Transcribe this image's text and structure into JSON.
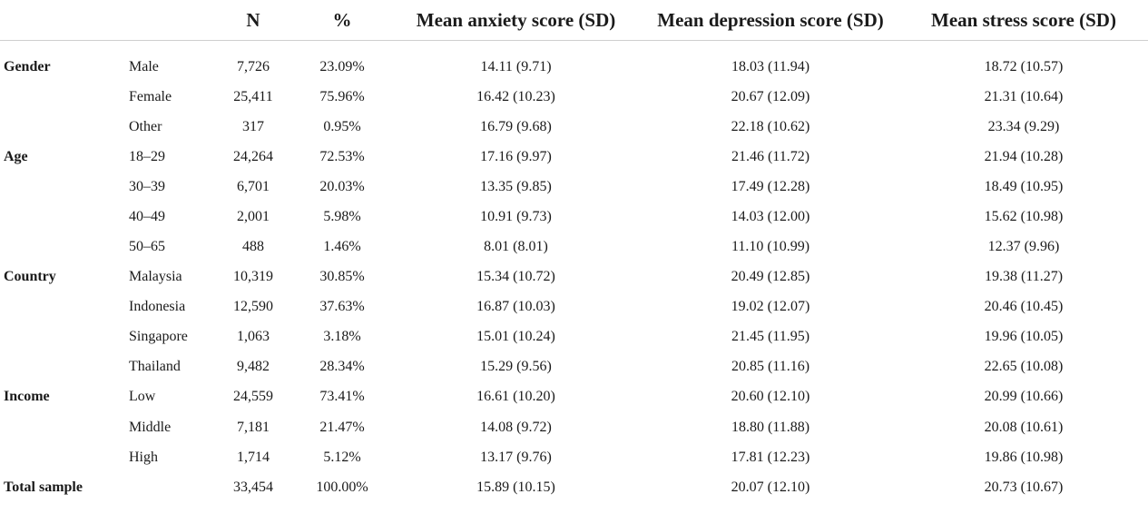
{
  "table": {
    "headers": {
      "group": "",
      "sub": "",
      "n": "N",
      "pct": "%",
      "anxiety": "Mean anxiety score (SD)",
      "depression": "Mean depression score (SD)",
      "stress": "Mean stress score (SD)"
    },
    "rows": [
      {
        "group": "Gender",
        "sub": "Male",
        "n": "7,726",
        "pct": "23.09%",
        "anxiety": "14.11 (9.71)",
        "depression": "18.03 (11.94)",
        "stress": "18.72 (10.57)"
      },
      {
        "group": "",
        "sub": "Female",
        "n": "25,411",
        "pct": "75.96%",
        "anxiety": "16.42 (10.23)",
        "depression": "20.67 (12.09)",
        "stress": "21.31 (10.64)"
      },
      {
        "group": "",
        "sub": "Other",
        "n": "317",
        "pct": "0.95%",
        "anxiety": "16.79 (9.68)",
        "depression": "22.18 (10.62)",
        "stress": "23.34 (9.29)"
      },
      {
        "group": "Age",
        "sub": "18–29",
        "n": "24,264",
        "pct": "72.53%",
        "anxiety": "17.16 (9.97)",
        "depression": "21.46 (11.72)",
        "stress": "21.94 (10.28)"
      },
      {
        "group": "",
        "sub": "30–39",
        "n": "6,701",
        "pct": "20.03%",
        "anxiety": "13.35 (9.85)",
        "depression": "17.49 (12.28)",
        "stress": "18.49 (10.95)"
      },
      {
        "group": "",
        "sub": "40–49",
        "n": "2,001",
        "pct": "5.98%",
        "anxiety": "10.91 (9.73)",
        "depression": "14.03 (12.00)",
        "stress": "15.62 (10.98)"
      },
      {
        "group": "",
        "sub": "50–65",
        "n": "488",
        "pct": "1.46%",
        "anxiety": "8.01 (8.01)",
        "depression": "11.10 (10.99)",
        "stress": "12.37 (9.96)"
      },
      {
        "group": "Country",
        "sub": "Malaysia",
        "n": "10,319",
        "pct": "30.85%",
        "anxiety": "15.34 (10.72)",
        "depression": "20.49 (12.85)",
        "stress": "19.38 (11.27)"
      },
      {
        "group": "",
        "sub": "Indonesia",
        "n": "12,590",
        "pct": "37.63%",
        "anxiety": "16.87 (10.03)",
        "depression": "19.02 (12.07)",
        "stress": "20.46 (10.45)"
      },
      {
        "group": "",
        "sub": "Singapore",
        "n": "1,063",
        "pct": "3.18%",
        "anxiety": "15.01 (10.24)",
        "depression": "21.45 (11.95)",
        "stress": "19.96 (10.05)"
      },
      {
        "group": "",
        "sub": "Thailand",
        "n": "9,482",
        "pct": "28.34%",
        "anxiety": "15.29 (9.56)",
        "depression": "20.85 (11.16)",
        "stress": "22.65 (10.08)"
      },
      {
        "group": "Income",
        "sub": "Low",
        "n": "24,559",
        "pct": "73.41%",
        "anxiety": "16.61 (10.20)",
        "depression": "20.60 (12.10)",
        "stress": "20.99 (10.66)"
      },
      {
        "group": "",
        "sub": "Middle",
        "n": "7,181",
        "pct": "21.47%",
        "anxiety": "14.08 (9.72)",
        "depression": "18.80 (11.88)",
        "stress": "20.08 (10.61)"
      },
      {
        "group": "",
        "sub": "High",
        "n": "1,714",
        "pct": "5.12%",
        "anxiety": "13.17 (9.76)",
        "depression": "17.81 (12.23)",
        "stress": "19.86 (10.98)"
      },
      {
        "group": "Total sample",
        "sub": "",
        "n": "33,454",
        "pct": "100.00%",
        "anxiety": "15.89 (10.15)",
        "depression": "20.07 (12.10)",
        "stress": "20.73 (10.67)"
      }
    ]
  }
}
